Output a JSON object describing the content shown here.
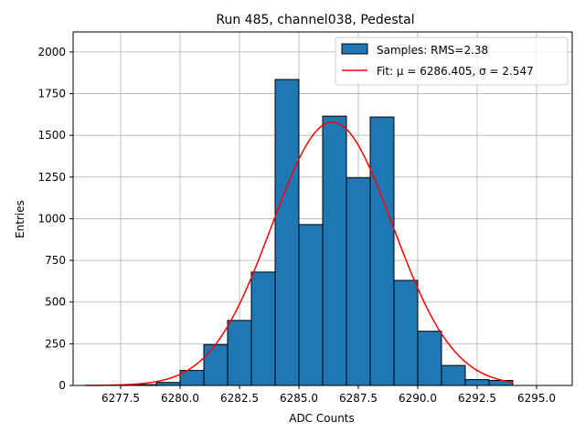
{
  "chart_data": {
    "type": "bar",
    "title": "Run 485, channel038, Pedestal",
    "xlabel": "ADC Counts",
    "ylabel": "Entries",
    "xlim": [
      6275.5,
      6296.5
    ],
    "ylim": [
      0,
      2120
    ],
    "grid": true,
    "legend_placement": "top-right",
    "xticks": [
      6277.5,
      6280.0,
      6282.5,
      6285.0,
      6287.5,
      6290.0,
      6292.5,
      6295.0
    ],
    "xtick_labels": [
      "6277.5",
      "6280.0",
      "6282.5",
      "6285.0",
      "6287.5",
      "6290.0",
      "6292.5",
      "6295.0"
    ],
    "yticks": [
      0,
      250,
      500,
      750,
      1000,
      1250,
      1500,
      1750,
      2000
    ],
    "ytick_labels": [
      "0",
      "250",
      "500",
      "750",
      "1000",
      "1250",
      "1500",
      "1750",
      "2000"
    ],
    "histogram": {
      "name": "Samples: RMS=2.38",
      "color": "#1f77b4",
      "edge_color": "#000000",
      "bin_edges": [
        6276,
        6277,
        6278,
        6279,
        6280,
        6281,
        6282,
        6283,
        6284,
        6285,
        6286,
        6287,
        6288,
        6289,
        6290,
        6291,
        6292,
        6293,
        6294,
        6295,
        6296
      ],
      "counts": [
        0,
        2,
        5,
        18,
        90,
        245,
        390,
        680,
        1835,
        965,
        1615,
        1245,
        1610,
        630,
        325,
        120,
        35,
        30,
        0,
        0
      ]
    },
    "fit": {
      "name": "Fit: μ = 6286.405, σ = 2.547",
      "color": "#ff0000",
      "mu": 6286.405,
      "sigma": 2.547,
      "amplitude": 1580,
      "x_range": [
        6276,
        6294
      ]
    }
  }
}
